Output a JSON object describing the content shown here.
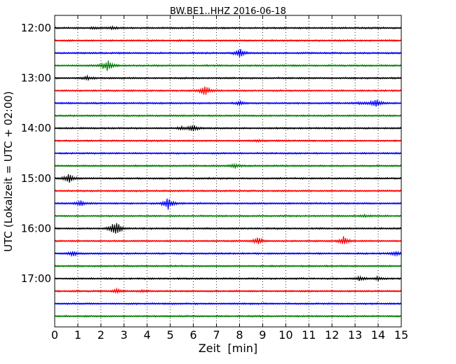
{
  "chart_data": {
    "type": "line",
    "title": "BW.BE1..HHZ 2016-06-18",
    "xlabel": "Zeit  [min]",
    "ylabel": "UTC (Lokalzeit = UTC + 02:00)",
    "xlim": [
      0,
      15
    ],
    "x_ticks": [
      "0",
      "1",
      "2",
      "3",
      "4",
      "5",
      "6",
      "7",
      "8",
      "9",
      "10",
      "11",
      "12",
      "13",
      "14",
      "15"
    ],
    "y_ticks": [
      "12:00",
      "13:00",
      "14:00",
      "15:00",
      "16:00",
      "17:00"
    ],
    "rows_per_hour": 4,
    "minutes_per_row": 15,
    "grid": true,
    "grid_style": "dotted",
    "series_colors": [
      "#000000",
      "#ff0000",
      "#0000ff",
      "#008000"
    ],
    "series": [
      {
        "start": "12:00",
        "events": [
          {
            "t": 1.7,
            "amp": 0.25
          },
          {
            "t": 2.5,
            "amp": 0.35
          }
        ]
      },
      {
        "start": "12:15",
        "events": []
      },
      {
        "start": "12:30",
        "events": [
          {
            "t": 8.0,
            "amp": 1.5
          }
        ]
      },
      {
        "start": "12:45",
        "events": [
          {
            "t": 2.3,
            "amp": 1.7
          },
          {
            "t": 2.1,
            "amp": 0.4
          }
        ]
      },
      {
        "start": "13:00",
        "events": [
          {
            "t": 1.4,
            "amp": 0.5
          }
        ]
      },
      {
        "start": "13:15",
        "events": [
          {
            "t": 6.5,
            "amp": 1.9
          }
        ]
      },
      {
        "start": "13:30",
        "events": [
          {
            "t": 8.0,
            "amp": 0.6
          },
          {
            "t": 13.9,
            "amp": 1.6
          },
          {
            "t": 13.2,
            "amp": 0.3
          }
        ]
      },
      {
        "start": "13:45",
        "events": []
      },
      {
        "start": "14:00",
        "events": [
          {
            "t": 6.0,
            "amp": 1.2
          },
          {
            "t": 5.5,
            "amp": 0.4
          }
        ]
      },
      {
        "start": "14:15",
        "events": [
          {
            "t": 8.8,
            "amp": 0.3
          }
        ]
      },
      {
        "start": "14:30",
        "events": []
      },
      {
        "start": "14:45",
        "events": [
          {
            "t": 7.8,
            "amp": 0.7
          }
        ]
      },
      {
        "start": "15:00",
        "events": [
          {
            "t": 0.6,
            "amp": 1.6
          }
        ]
      },
      {
        "start": "15:15",
        "events": []
      },
      {
        "start": "15:30",
        "events": [
          {
            "t": 4.9,
            "amp": 2.0
          },
          {
            "t": 1.1,
            "amp": 0.9
          }
        ]
      },
      {
        "start": "15:45",
        "events": [
          {
            "t": 13.4,
            "amp": 0.3
          }
        ]
      },
      {
        "start": "16:00",
        "events": [
          {
            "t": 2.7,
            "amp": 1.8
          },
          {
            "t": 2.5,
            "amp": 0.8
          }
        ]
      },
      {
        "start": "16:15",
        "events": [
          {
            "t": 8.8,
            "amp": 1.2
          },
          {
            "t": 12.5,
            "amp": 1.3
          }
        ]
      },
      {
        "start": "16:30",
        "events": [
          {
            "t": 0.8,
            "amp": 0.9
          },
          {
            "t": 14.8,
            "amp": 0.8
          }
        ]
      },
      {
        "start": "16:45",
        "events": []
      },
      {
        "start": "17:00",
        "events": [
          {
            "t": 13.2,
            "amp": 0.6
          },
          {
            "t": 14.0,
            "amp": 0.5
          }
        ]
      },
      {
        "start": "17:15",
        "events": [
          {
            "t": 2.7,
            "amp": 0.6
          },
          {
            "t": 3.8,
            "amp": 0.3
          }
        ]
      },
      {
        "start": "17:30",
        "events": []
      },
      {
        "start": "17:45",
        "events": []
      }
    ]
  }
}
